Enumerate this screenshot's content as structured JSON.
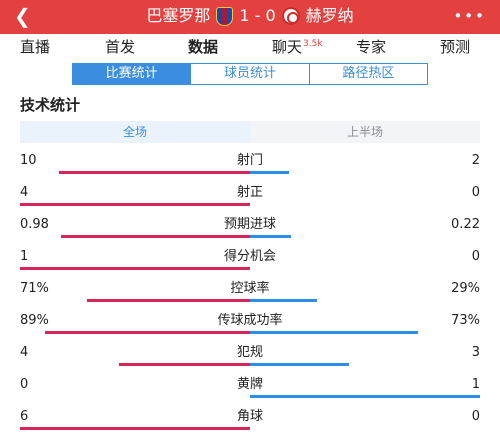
{
  "header": {
    "back_icon": "chevron-left-icon",
    "home_team": "巴塞罗那",
    "score": "1 - 0",
    "away_team": "赫罗纳",
    "more_icon": "more-icon"
  },
  "tabs": [
    {
      "label": "直播"
    },
    {
      "label": "首发"
    },
    {
      "label": "数据",
      "active": true
    },
    {
      "label": "聊天",
      "badge": "3.5k"
    },
    {
      "label": "专家"
    },
    {
      "label": "预测"
    }
  ],
  "subtabs": [
    {
      "label": "比赛统计",
      "active": true
    },
    {
      "label": "球员统计"
    },
    {
      "label": "路径热区"
    }
  ],
  "section_title": "技术统计",
  "period": {
    "full": "全场",
    "first_half": "上半场"
  },
  "colors": {
    "header": "#e2413f",
    "home_bar": "#d9245a",
    "away_bar": "#2b8ee8",
    "accent": "#3b8de0"
  },
  "stats": [
    {
      "name": "射门",
      "home": "10",
      "away": "2",
      "home_share": 0.83,
      "away_share": 0.17
    },
    {
      "name": "射正",
      "home": "4",
      "away": "0",
      "home_share": 1.0,
      "away_share": 0.0
    },
    {
      "name": "预期进球",
      "home": "0.98",
      "away": "0.22",
      "home_share": 0.82,
      "away_share": 0.18
    },
    {
      "name": "得分机会",
      "home": "1",
      "away": "0",
      "home_share": 1.0,
      "away_share": 0.0
    },
    {
      "name": "控球率",
      "home": "71%",
      "away": "29%",
      "home_share": 0.71,
      "away_share": 0.29
    },
    {
      "name": "传球成功率",
      "home": "89%",
      "away": "73%",
      "home_share": 0.89,
      "away_share": 0.73
    },
    {
      "name": "犯规",
      "home": "4",
      "away": "3",
      "home_share": 0.57,
      "away_share": 0.43
    },
    {
      "name": "黄牌",
      "home": "0",
      "away": "1",
      "home_share": 0.0,
      "away_share": 1.0
    },
    {
      "name": "角球",
      "home": "6",
      "away": "0",
      "home_share": 1.0,
      "away_share": 0.0
    }
  ]
}
